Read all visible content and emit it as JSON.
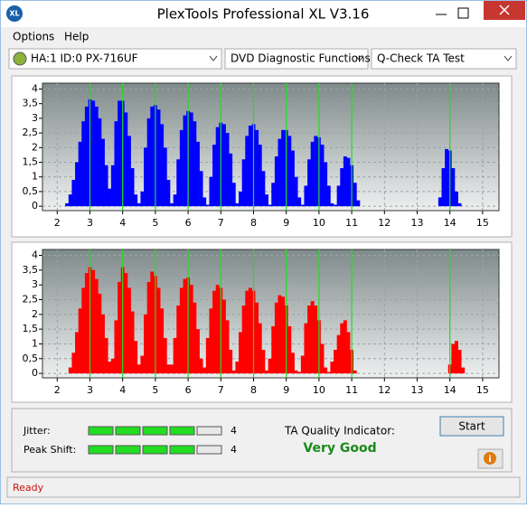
{
  "window": {
    "title": "PlexTools Professional XL V3.16"
  },
  "menu": [
    "Options",
    "Help"
  ],
  "toolbar": {
    "drive": "HA:1 ID:0  PX-716UF",
    "function": "DVD Diagnostic Functions",
    "test": "Q-Check TA Test"
  },
  "chart_data": [
    {
      "type": "bar",
      "color": "#0000ff",
      "x": [
        2.3,
        2.4,
        2.5,
        2.6,
        2.7,
        2.8,
        2.9,
        3.0,
        3.1,
        3.2,
        3.3,
        3.4,
        3.5,
        3.6,
        3.7,
        3.8,
        3.9,
        4.0,
        4.1,
        4.2,
        4.3,
        4.4,
        4.5,
        4.6,
        4.7,
        4.8,
        4.9,
        5.0,
        5.1,
        5.2,
        5.3,
        5.4,
        5.5,
        5.6,
        5.7,
        5.8,
        5.9,
        6.0,
        6.1,
        6.2,
        6.3,
        6.4,
        6.5,
        6.6,
        6.7,
        6.8,
        6.9,
        7.0,
        7.1,
        7.2,
        7.3,
        7.4,
        7.5,
        7.6,
        7.7,
        7.8,
        7.9,
        8.0,
        8.1,
        8.2,
        8.3,
        8.4,
        8.5,
        8.6,
        8.7,
        8.8,
        8.9,
        9.0,
        9.1,
        9.2,
        9.3,
        9.4,
        9.5,
        9.6,
        9.7,
        9.8,
        9.9,
        10.0,
        10.1,
        10.2,
        10.3,
        10.4,
        10.5,
        10.6,
        10.7,
        10.8,
        10.9,
        11.0,
        11.1,
        11.2,
        11.3,
        11.4,
        11.5,
        13.7,
        13.8,
        13.9,
        14.0,
        14.1,
        14.2,
        14.3,
        14.4,
        14.5,
        14.6
      ],
      "values": [
        0.1,
        0.4,
        0.9,
        1.5,
        2.2,
        2.9,
        3.4,
        3.65,
        3.6,
        3.4,
        3.0,
        2.3,
        1.4,
        0.6,
        1.4,
        2.9,
        3.6,
        3.6,
        3.2,
        2.4,
        1.3,
        0.4,
        0.1,
        0.5,
        2.0,
        3.0,
        3.4,
        3.45,
        3.3,
        2.8,
        2.0,
        0.9,
        0.1,
        0.4,
        1.6,
        2.6,
        3.1,
        3.25,
        3.2,
        2.9,
        2.2,
        1.2,
        0.3,
        0.05,
        1.0,
        2.1,
        2.7,
        2.85,
        2.8,
        2.5,
        1.8,
        0.8,
        0.1,
        0.5,
        1.6,
        2.4,
        2.75,
        2.8,
        2.6,
        2.1,
        1.2,
        0.4,
        0.05,
        0.8,
        1.7,
        2.3,
        2.6,
        2.6,
        2.4,
        1.9,
        1.0,
        0.3,
        0.05,
        0.7,
        1.6,
        2.2,
        2.4,
        2.35,
        2.1,
        1.5,
        0.7,
        0.1,
        0.05,
        0.7,
        1.3,
        1.7,
        1.65,
        1.4,
        0.8,
        0.2,
        0,
        0,
        0,
        0.3,
        1.3,
        1.95,
        1.9,
        1.3,
        0.5,
        0.1,
        0,
        0,
        0
      ],
      "xlim": [
        1.55,
        15.5
      ],
      "ylim": [
        -0.15,
        4.2
      ],
      "xticks": [
        2,
        3,
        4,
        5,
        6,
        7,
        8,
        9,
        10,
        11,
        12,
        13,
        14,
        15
      ],
      "yticks": [
        0,
        {
          "value": 0.5,
          "label": "0,5"
        },
        1,
        {
          "value": 1.5,
          "label": "1,5"
        },
        2,
        {
          "value": 2.5,
          "label": "2,5"
        },
        3,
        {
          "value": 3.5,
          "label": "3,5"
        },
        4
      ],
      "grid": true,
      "reference_lines": [
        3,
        4,
        5,
        6,
        7,
        8,
        9,
        10,
        11,
        14
      ],
      "reference_color": "#22dd22"
    },
    {
      "type": "bar",
      "color": "#ff0000",
      "x": [
        2.3,
        2.4,
        2.5,
        2.6,
        2.7,
        2.8,
        2.9,
        3.0,
        3.1,
        3.2,
        3.3,
        3.4,
        3.5,
        3.6,
        3.7,
        3.8,
        3.9,
        4.0,
        4.1,
        4.2,
        4.3,
        4.4,
        4.5,
        4.6,
        4.7,
        4.8,
        4.9,
        5.0,
        5.1,
        5.2,
        5.3,
        5.4,
        5.5,
        5.6,
        5.7,
        5.8,
        5.9,
        6.0,
        6.1,
        6.2,
        6.3,
        6.4,
        6.5,
        6.6,
        6.7,
        6.8,
        6.9,
        7.0,
        7.1,
        7.2,
        7.3,
        7.4,
        7.5,
        7.6,
        7.7,
        7.8,
        7.9,
        8.0,
        8.1,
        8.2,
        8.3,
        8.4,
        8.5,
        8.6,
        8.7,
        8.8,
        8.9,
        9.0,
        9.1,
        9.2,
        9.3,
        9.4,
        9.5,
        9.6,
        9.7,
        9.8,
        9.9,
        10.0,
        10.1,
        10.2,
        10.3,
        10.4,
        10.5,
        10.6,
        10.7,
        10.8,
        10.9,
        11.0,
        11.1,
        11.2,
        11.3,
        11.4,
        11.5,
        13.7,
        13.8,
        13.9,
        14.0,
        14.1,
        14.2,
        14.3,
        14.4,
        14.5,
        14.6
      ],
      "values": [
        0,
        0.2,
        0.7,
        1.4,
        2.2,
        2.9,
        3.4,
        3.6,
        3.5,
        3.2,
        2.7,
        2.0,
        1.2,
        0.4,
        0.5,
        1.8,
        3.1,
        3.6,
        3.4,
        2.9,
        2.1,
        1.1,
        0.3,
        0.6,
        2.0,
        3.1,
        3.45,
        3.3,
        2.9,
        2.2,
        1.2,
        0.3,
        0.3,
        1.2,
        2.3,
        2.9,
        3.2,
        3.25,
        3.0,
        2.4,
        1.5,
        0.5,
        0.2,
        1.2,
        2.2,
        2.8,
        3.0,
        2.9,
        2.5,
        1.8,
        0.8,
        0.1,
        0.4,
        1.4,
        2.3,
        2.8,
        2.9,
        2.8,
        2.4,
        1.7,
        0.8,
        0.1,
        0.5,
        1.6,
        2.4,
        2.65,
        2.6,
        2.3,
        1.6,
        0.7,
        0.1,
        0.05,
        0.6,
        1.7,
        2.3,
        2.45,
        2.3,
        1.8,
        1.0,
        0.2,
        0.05,
        0.4,
        0.8,
        1.3,
        1.7,
        1.8,
        1.4,
        0.8,
        0.1,
        0,
        0,
        0,
        0,
        0,
        0,
        0,
        0.3,
        1.0,
        1.1,
        0.8,
        0.2,
        0,
        0
      ],
      "xlim": [
        1.55,
        15.5
      ],
      "ylim": [
        -0.15,
        4.2
      ],
      "xticks": [
        2,
        3,
        4,
        5,
        6,
        7,
        8,
        9,
        10,
        11,
        12,
        13,
        14,
        15
      ],
      "yticks": [
        0,
        {
          "value": 0.5,
          "label": "0,5"
        },
        1,
        {
          "value": 1.5,
          "label": "1,5"
        },
        2,
        {
          "value": 2.5,
          "label": "2,5"
        },
        3,
        {
          "value": 3.5,
          "label": "3,5"
        },
        4
      ],
      "grid": true,
      "reference_lines": [
        3,
        4,
        5,
        6,
        7,
        8,
        9,
        10,
        11,
        14
      ],
      "reference_color": "#22dd22"
    }
  ],
  "results": {
    "jitter_label": "Jitter:",
    "jitter": 4,
    "peak_shift_label": "Peak Shift:",
    "peak_shift": 4,
    "ta_label": "TA Quality Indicator:",
    "ta_value": "Very Good"
  },
  "buttons": {
    "start": "Start"
  },
  "status": "Ready"
}
